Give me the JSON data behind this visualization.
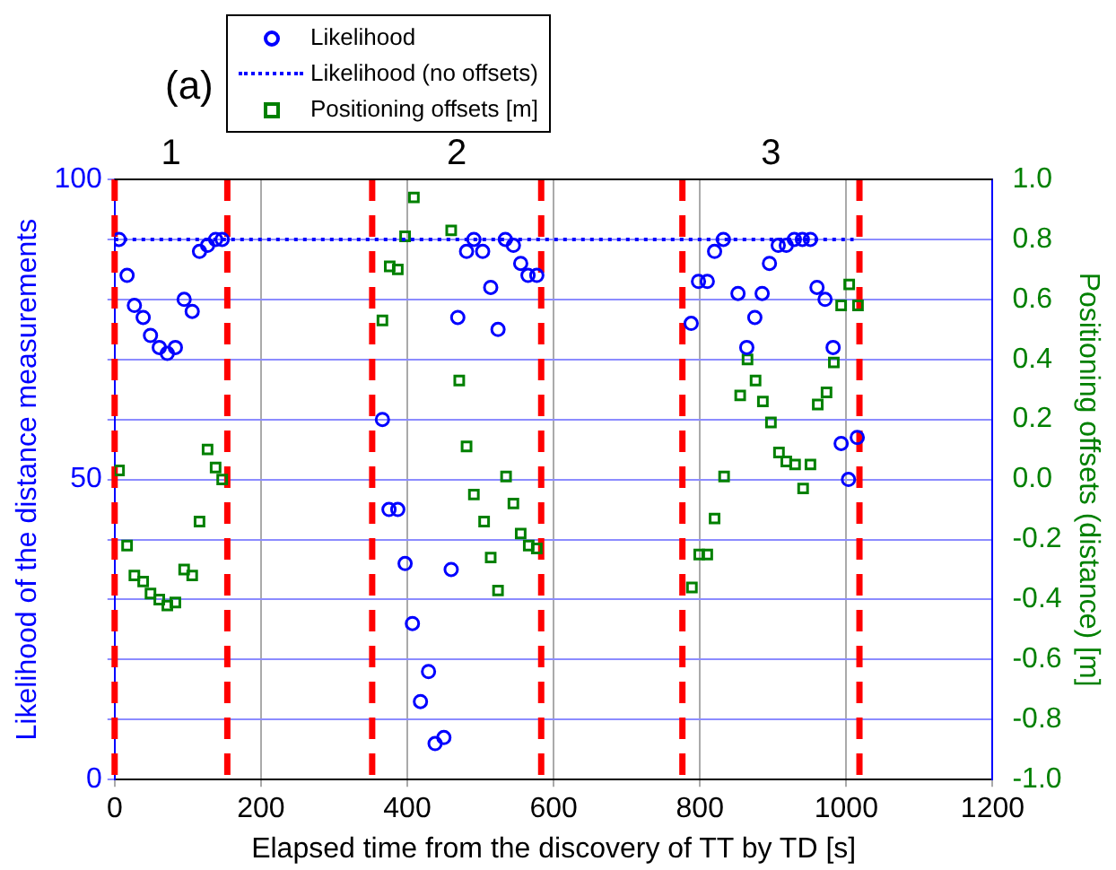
{
  "chart_data": {
    "type": "scatter",
    "xlabel": "Elapsed time from the discovery of TT by TD [s]",
    "ylabel": "Likelihood of the distance measurements",
    "y2label": "Positioning offsets (distance) [m]",
    "annotations": [
      "(a)",
      "1",
      "2",
      "3"
    ],
    "xlim": [
      0,
      1200
    ],
    "xticks": [
      0,
      200,
      400,
      600,
      800,
      1000,
      1200
    ],
    "ylim": [
      0,
      100
    ],
    "yticks": [
      0,
      {
        "value": 10,
        "label": null
      },
      {
        "value": 20,
        "label": null
      },
      {
        "value": 30,
        "label": null
      },
      {
        "value": 40,
        "label": null
      },
      50,
      {
        "value": 60,
        "label": null
      },
      {
        "value": 70,
        "label": null
      },
      {
        "value": 80,
        "label": null
      },
      {
        "value": 90,
        "label": null
      },
      100
    ],
    "y2lim": [
      -1,
      1
    ],
    "y2ticks": [
      {
        "value": -1,
        "label": "-1.0"
      },
      -0.8,
      -0.6,
      -0.4,
      -0.2,
      {
        "value": 0,
        "label": "0.0"
      },
      0.2,
      0.4,
      0.6,
      0.8,
      {
        "value": 1,
        "label": "1.0"
      }
    ],
    "grid": true,
    "legend": "top",
    "ref_lines": [
      {
        "axis": "x",
        "value": 0,
        "color": "#ff0000",
        "line_style": "dashed"
      },
      {
        "axis": "x",
        "value": 154,
        "color": "#ff0000",
        "line_style": "dashed"
      },
      {
        "axis": "x",
        "value": 352,
        "color": "#ff0000",
        "line_style": "dashed"
      },
      {
        "axis": "x",
        "value": 583,
        "color": "#ff0000",
        "line_style": "dashed"
      },
      {
        "axis": "x",
        "value": 776,
        "color": "#ff0000",
        "line_style": "dashed"
      },
      {
        "axis": "x",
        "value": 1018,
        "color": "#ff0000",
        "line_style": "dashed"
      }
    ],
    "series": [
      {
        "name": "Likelihood",
        "color": "#0000ff",
        "marker": "circle",
        "x": [
          6,
          17,
          27,
          39,
          49,
          61,
          72,
          83,
          95,
          106,
          116,
          127,
          138,
          147,
          366,
          375,
          387,
          397,
          407,
          418,
          429,
          438,
          450,
          460,
          469,
          481,
          491,
          503,
          514,
          524,
          534,
          545,
          555,
          565,
          577,
          788,
          798,
          810,
          820,
          832,
          852,
          864,
          875,
          885,
          895,
          907,
          918,
          929,
          940,
          951,
          960,
          971,
          982,
          993,
          1003,
          1015
        ],
        "values": [
          90,
          84,
          79,
          77,
          74,
          72,
          71,
          72,
          80,
          78,
          88,
          89,
          90,
          90,
          60,
          45,
          45,
          36,
          26,
          13,
          18,
          6,
          7,
          35,
          77,
          88,
          90,
          88,
          82,
          75,
          90,
          89,
          86,
          84,
          84,
          76,
          83,
          83,
          88,
          90,
          81,
          72,
          77,
          81,
          86,
          89,
          89,
          90,
          90,
          90,
          82,
          80,
          72,
          56,
          50,
          57
        ]
      },
      {
        "name": "Likelihood (no offsets)",
        "type": "line",
        "color": "#0000ff",
        "line_style": "dotted",
        "marker": "none",
        "x": [
          0,
          1010
        ],
        "values": [
          90,
          90
        ]
      },
      {
        "name": "Positioning offsets [m]",
        "axis": "y2",
        "color": "#008000",
        "marker": "square",
        "x": [
          6,
          17,
          27,
          39,
          49,
          61,
          72,
          83,
          95,
          106,
          116,
          127,
          138,
          147,
          366,
          376,
          387,
          397,
          409,
          460,
          471,
          481,
          491,
          505,
          514,
          524,
          535,
          545,
          555,
          566,
          577,
          789,
          799,
          810,
          820,
          833,
          855,
          865,
          876,
          886,
          897,
          908,
          918,
          930,
          941,
          951,
          961,
          973,
          983,
          993,
          1004,
          1016
        ],
        "values": [
          0.03,
          -0.22,
          -0.32,
          -0.34,
          -0.38,
          -0.4,
          -0.42,
          -0.41,
          -0.3,
          -0.32,
          -0.14,
          0.1,
          0.04,
          0,
          0.53,
          0.71,
          0.7,
          0.81,
          0.94,
          0.83,
          0.33,
          0.11,
          -0.05,
          -0.14,
          -0.26,
          -0.37,
          0.01,
          -0.08,
          -0.18,
          -0.22,
          -0.23,
          -0.36,
          -0.25,
          -0.25,
          -0.13,
          0.01,
          0.28,
          0.4,
          0.33,
          0.26,
          0.19,
          0.09,
          0.06,
          0.05,
          -0.03,
          0.05,
          0.25,
          0.29,
          0.39,
          0.58,
          0.65,
          0.58
        ]
      }
    ]
  }
}
